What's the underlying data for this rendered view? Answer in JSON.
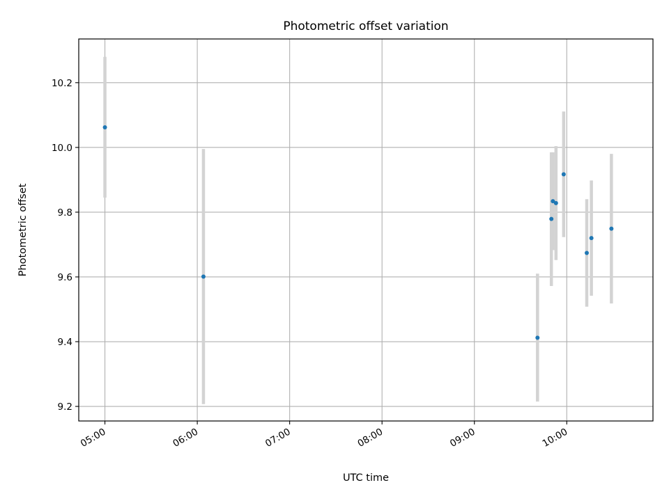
{
  "chart_data": {
    "type": "scatter",
    "title": "Photometric offset variation",
    "xlabel": "UTC time",
    "ylabel": "Photometric offset",
    "x_unit": "UTC time (HH:MM)",
    "xlim": [
      "04:43",
      "10:56"
    ],
    "ylim": [
      9.155,
      10.335
    ],
    "x_ticks": [
      "05:00",
      "06:00",
      "07:00",
      "08:00",
      "09:00",
      "10:00"
    ],
    "y_ticks": [
      9.2,
      9.4,
      9.6,
      9.8,
      10.0,
      10.2
    ],
    "y_tick_labels": [
      "9.2",
      "9.4",
      "9.6",
      "9.8",
      "10.0",
      "10.2"
    ],
    "grid": true,
    "legend": "none",
    "points": [
      {
        "x": "05:00",
        "y": 10.062,
        "err_low": 9.845,
        "err_high": 10.28
      },
      {
        "x": "06:04",
        "y": 9.601,
        "err_low": 9.207,
        "err_high": 9.995
      },
      {
        "x": "09:41",
        "y": 9.412,
        "err_low": 9.215,
        "err_high": 9.61
      },
      {
        "x": "09:50",
        "y": 9.779,
        "err_low": 9.572,
        "err_high": 9.985
      },
      {
        "x": "09:51",
        "y": 9.834,
        "err_low": 9.683,
        "err_high": 9.985
      },
      {
        "x": "09:53",
        "y": 9.828,
        "err_low": 9.652,
        "err_high": 10.004
      },
      {
        "x": "09:58",
        "y": 9.917,
        "err_low": 9.723,
        "err_high": 10.111
      },
      {
        "x": "10:13",
        "y": 9.674,
        "err_low": 9.508,
        "err_high": 9.84
      },
      {
        "x": "10:16",
        "y": 9.72,
        "err_low": 9.542,
        "err_high": 9.898
      },
      {
        "x": "10:29",
        "y": 9.749,
        "err_low": 9.518,
        "err_high": 9.98
      }
    ],
    "colors": {
      "marker": "#1f77b4",
      "errorbar": "#d3d3d3",
      "grid": "#b0b0b0",
      "axes": "#000000"
    }
  }
}
